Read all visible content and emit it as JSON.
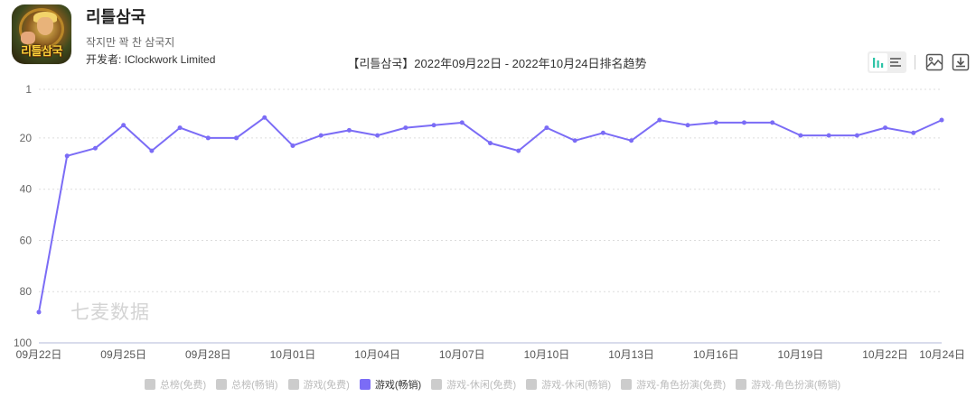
{
  "app": {
    "name": "리틀삼국",
    "icon_text": "리틀삼국",
    "subtitle": "작지만 꽉 찬 삼국지",
    "developer_label": "开发者: IClockwork Limited"
  },
  "toolbar": {
    "icons": [
      "bar-chart-icon",
      "list-icon",
      "image-icon",
      "download-icon"
    ]
  },
  "watermark": "七麦数据",
  "colors": {
    "series": "#7b6cf6",
    "grid": "#dddddd",
    "axis": "#b3b8d8",
    "legend_inactive": "#cccccc"
  },
  "legend": [
    {
      "label": "总榜(免费)",
      "active": false
    },
    {
      "label": "总榜(畅销)",
      "active": false
    },
    {
      "label": "游戏(免费)",
      "active": false
    },
    {
      "label": "游戏(畅销)",
      "active": true
    },
    {
      "label": "游戏-休闲(免费)",
      "active": false
    },
    {
      "label": "游戏-休闲(畅销)",
      "active": false
    },
    {
      "label": "游戏-角色扮演(免费)",
      "active": false
    },
    {
      "label": "游戏-角色扮演(畅销)",
      "active": false
    }
  ],
  "chart_data": {
    "type": "line",
    "title": "【리틀삼국】2022年09月22日 - 2022年10月24日排名趋势",
    "xlabel": "",
    "ylabel": "",
    "ylim": [
      1,
      100
    ],
    "y_inverted": true,
    "y_ticks": [
      1,
      20,
      40,
      60,
      80,
      100
    ],
    "x": [
      "09月22日",
      "09月23日",
      "09月24日",
      "09月25日",
      "09月26日",
      "09月27日",
      "09月28日",
      "09月29日",
      "09月30日",
      "10月01日",
      "10月02日",
      "10月03日",
      "10月04日",
      "10月05日",
      "10月06日",
      "10月07日",
      "10月08日",
      "10月09日",
      "10月10日",
      "10月11日",
      "10月12日",
      "10月13日",
      "10月14日",
      "10月15日",
      "10月16日",
      "10月17日",
      "10月18日",
      "10月19日",
      "10月20日",
      "10月21日",
      "10月22日",
      "10月23日",
      "10月24日"
    ],
    "x_tick_labels": [
      "09月22日",
      "09月25日",
      "09月28日",
      "10月01日",
      "10月04日",
      "10月07日",
      "10月10日",
      "10月13日",
      "10月16日",
      "10月19日",
      "10月22日",
      "10月24日"
    ],
    "grid": true,
    "legend_position": "bottom",
    "series": [
      {
        "name": "游戏(畅销)",
        "values": [
          88,
          27,
          24,
          15,
          25,
          16,
          20,
          20,
          12,
          23,
          19,
          17,
          19,
          16,
          15,
          14,
          22,
          25,
          16,
          21,
          18,
          21,
          13,
          15,
          14,
          14,
          14,
          19,
          19,
          19,
          16,
          18,
          13
        ]
      }
    ]
  }
}
